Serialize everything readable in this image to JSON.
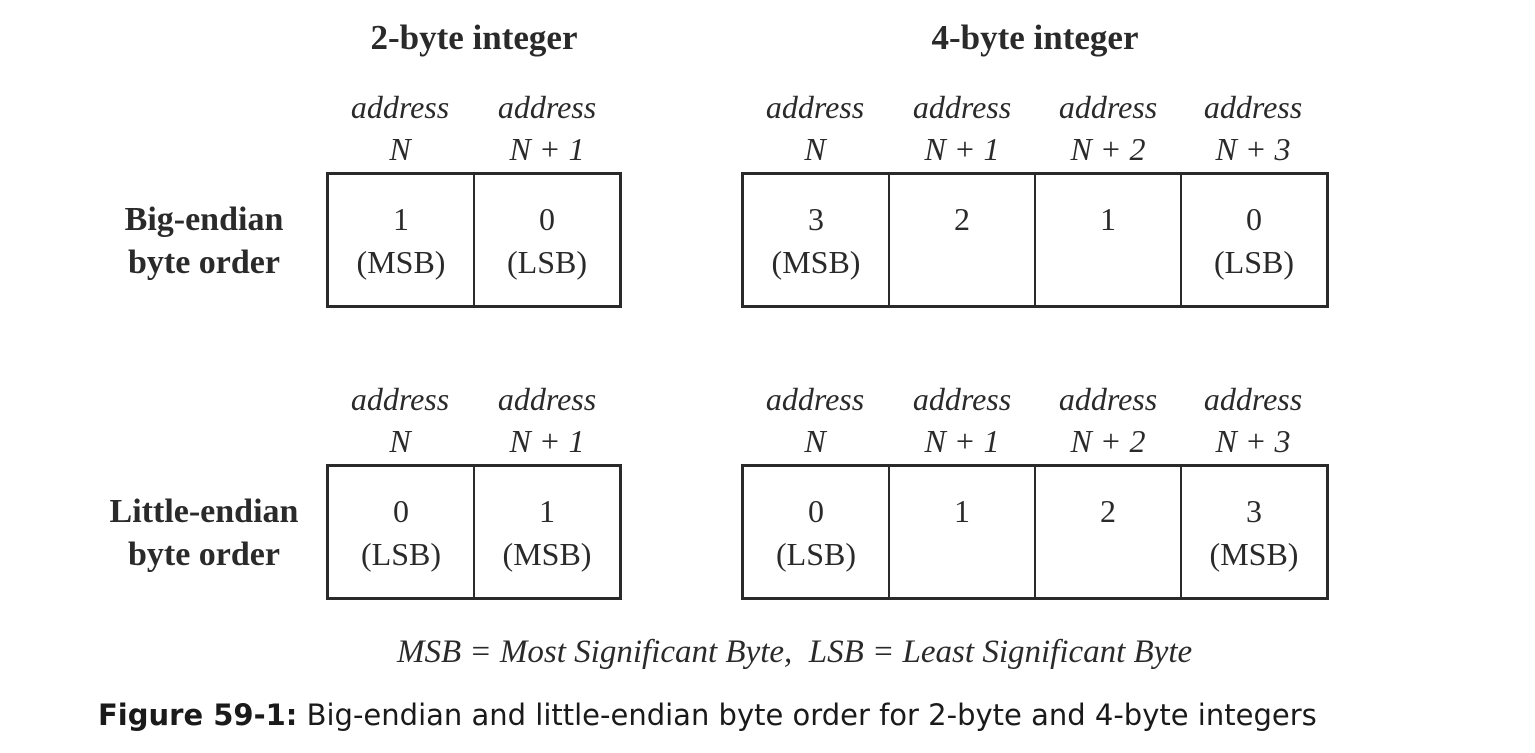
{
  "titles": {
    "two_byte": "2-byte integer",
    "four_byte": "4-byte integer"
  },
  "rows": {
    "big": {
      "label_1": "Big-endian",
      "label_2": "byte order"
    },
    "little": {
      "label_1": "Little-endian",
      "label_2": "byte order"
    }
  },
  "addresses": [
    {
      "word": "address",
      "offset": "N"
    },
    {
      "word": "address",
      "offset": "N + 1"
    },
    {
      "word": "address",
      "offset": "N + 2"
    },
    {
      "word": "address",
      "offset": "N + 3"
    }
  ],
  "cells": {
    "big_2": [
      {
        "value": "1",
        "note": "(MSB)"
      },
      {
        "value": "0",
        "note": "(LSB)"
      }
    ],
    "big_4": [
      {
        "value": "3",
        "note": "(MSB)"
      },
      {
        "value": "2",
        "note": ""
      },
      {
        "value": "1",
        "note": ""
      },
      {
        "value": "0",
        "note": "(LSB)"
      }
    ],
    "little_2": [
      {
        "value": "0",
        "note": "(LSB)"
      },
      {
        "value": "1",
        "note": "(MSB)"
      }
    ],
    "little_4": [
      {
        "value": "0",
        "note": "(LSB)"
      },
      {
        "value": "1",
        "note": ""
      },
      {
        "value": "2",
        "note": ""
      },
      {
        "value": "3",
        "note": "(MSB)"
      }
    ]
  },
  "legend": "MSB = Most Significant Byte,  LSB = Least Significant Byte",
  "caption": {
    "label": "Figure 59-1:",
    "text": " Big-endian and little-endian byte order for 2-byte and 4-byte integers"
  }
}
